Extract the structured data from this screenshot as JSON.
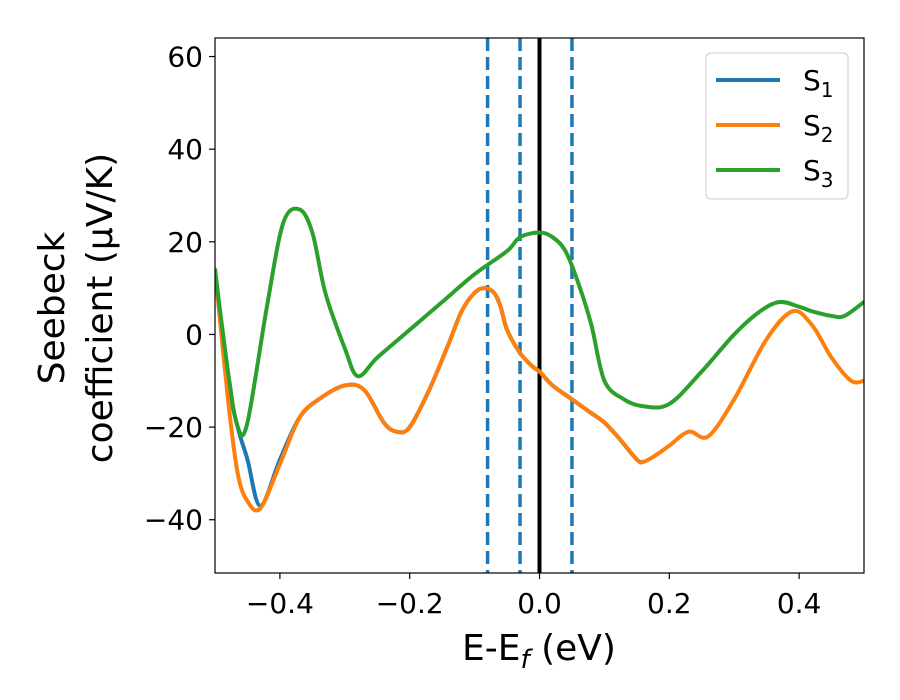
{
  "chart_data": {
    "type": "line",
    "xlabel_parts": {
      "main": "E-E",
      "sub": "f",
      "tail": " (eV)"
    },
    "ylabel_lines": [
      "Seebeck",
      "coefficient  (μV/K)"
    ],
    "xlim": [
      -0.5,
      0.5
    ],
    "ylim": [
      -51.5,
      64
    ],
    "xticks": [
      -0.4,
      -0.2,
      0.0,
      0.2,
      0.4
    ],
    "xtick_labels": [
      "−0.4",
      "−0.2",
      "0.0",
      "0.2",
      "0.4"
    ],
    "yticks": [
      -40,
      -20,
      0,
      20,
      40,
      60
    ],
    "ytick_labels": [
      "−40",
      "−20",
      "0",
      "20",
      "40",
      "60"
    ],
    "grid": false,
    "legend_position": "top-right",
    "series": [
      {
        "name_main": "S",
        "name_sub": "1",
        "color": "#1f77b4",
        "x": [
          -0.5,
          -0.48,
          -0.465,
          -0.45,
          -0.43,
          -0.4,
          -0.37,
          -0.34,
          -0.3,
          -0.27,
          -0.24,
          -0.22,
          -0.2,
          -0.17,
          -0.14,
          -0.12,
          -0.1,
          -0.085,
          -0.07,
          -0.06,
          -0.05,
          -0.03,
          -0.01,
          0.0,
          0.02,
          0.05,
          0.08,
          0.1,
          0.12,
          0.15,
          0.16
        ],
        "y": [
          14,
          -10,
          -20,
          -27,
          -37,
          -27,
          -18,
          -14,
          -11,
          -12,
          -19,
          -21,
          -20,
          -12,
          -2,
          5,
          9,
          10,
          9,
          6,
          1,
          -4,
          -7,
          -8,
          -11,
          -14,
          -17,
          -19,
          -22,
          -27,
          -27.5
        ]
      },
      {
        "name_main": "S",
        "name_sub": "2",
        "color": "#ff7f0e",
        "x": [
          -0.5,
          -0.48,
          -0.465,
          -0.45,
          -0.43,
          -0.4,
          -0.37,
          -0.34,
          -0.3,
          -0.27,
          -0.24,
          -0.22,
          -0.2,
          -0.17,
          -0.14,
          -0.12,
          -0.1,
          -0.085,
          -0.07,
          -0.06,
          -0.05,
          -0.03,
          -0.01,
          0.0,
          0.02,
          0.05,
          0.08,
          0.1,
          0.12,
          0.15,
          0.16,
          0.18,
          0.2,
          0.23,
          0.26,
          0.3,
          0.35,
          0.39,
          0.42,
          0.45,
          0.48,
          0.5
        ],
        "y": [
          14,
          -14,
          -30,
          -36,
          -37.5,
          -28,
          -18,
          -14,
          -11,
          -12,
          -19,
          -21,
          -20,
          -12,
          -2,
          5,
          9,
          10,
          9,
          6,
          1,
          -4,
          -7,
          -8,
          -11,
          -14,
          -17,
          -19,
          -22,
          -27,
          -27.5,
          -26,
          -24,
          -21,
          -22,
          -14,
          -1,
          5,
          2,
          -5,
          -10,
          -10
        ]
      },
      {
        "name_main": "S",
        "name_sub": "3",
        "color": "#2ca02c",
        "x": [
          -0.5,
          -0.48,
          -0.465,
          -0.45,
          -0.42,
          -0.395,
          -0.37,
          -0.35,
          -0.33,
          -0.3,
          -0.28,
          -0.25,
          -0.2,
          -0.15,
          -0.1,
          -0.05,
          -0.03,
          0.0,
          0.02,
          0.04,
          0.06,
          0.08,
          0.1,
          0.13,
          0.16,
          0.2,
          0.25,
          0.3,
          0.34,
          0.37,
          0.4,
          0.42,
          0.45,
          0.47,
          0.5
        ],
        "y": [
          14,
          -8,
          -20,
          -19,
          6,
          24,
          27,
          22,
          9,
          -3,
          -9,
          -5,
          1,
          7,
          13,
          18,
          21,
          22,
          21,
          18,
          11,
          2,
          -10,
          -14,
          -15.5,
          -15,
          -8,
          0,
          5,
          7,
          6,
          5,
          4,
          4,
          7
        ]
      }
    ],
    "vlines": [
      {
        "x": -0.08,
        "color": "#1f77b4",
        "style": "dashed"
      },
      {
        "x": -0.03,
        "color": "#1f77b4",
        "style": "dashed"
      },
      {
        "x": 0.0,
        "color": "#000000",
        "style": "solid"
      },
      {
        "x": 0.05,
        "color": "#1f77b4",
        "style": "dashed"
      }
    ]
  }
}
